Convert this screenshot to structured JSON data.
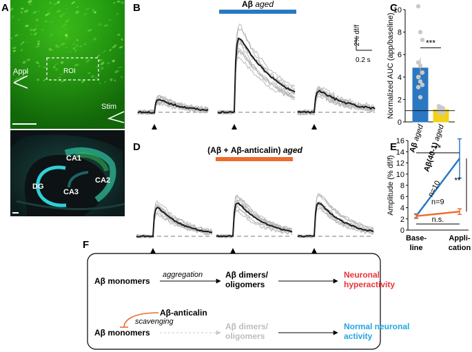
{
  "panels": {
    "A": {
      "letter": "A",
      "appl_label": "Appl",
      "roi_label": "ROI",
      "stim_label": "Stim",
      "regions": [
        "CA1",
        "CA2",
        "DG",
        "CA3"
      ]
    },
    "B": {
      "letter": "B",
      "bar_label_main": "Aβ ",
      "bar_label_sub": "aged",
      "bar_color": "#2b78c2",
      "scale_y": "2% df/f",
      "scale_x": "0.2 s"
    },
    "C": {
      "letter": "C"
    },
    "D": {
      "letter": "D",
      "bar_label_main": "(Aβ + Aβ-anticalin) ",
      "bar_label_sub": "aged",
      "bar_color": "#ee6a2e"
    },
    "E": {
      "letter": "E"
    },
    "F": {
      "letter": "F",
      "row1": {
        "start": "Aβ monomers",
        "arrow_label": "aggregation",
        "middle_line1": "Aβ dimers/",
        "middle_line2": "oligomers",
        "end_line1": "Neuronal",
        "end_line2": "hyperactivity",
        "end_color": "#e8333a"
      },
      "row2": {
        "inhibitor": "Aβ-anticalin",
        "inhibitor_label": "scavenging",
        "start": "Aβ monomers",
        "middle_line1": "Aβ dimers/",
        "middle_line2": "oligomers",
        "end_line1": "Normal neuronal",
        "end_line2": "activity",
        "end_color": "#22a7e0",
        "inhibit_color": "#ee6a2e"
      }
    }
  },
  "chart_data": [
    {
      "panel": "C",
      "type": "bar",
      "ylabel": "Normalized AUC (app/baseline)",
      "ylim": [
        0,
        10
      ],
      "yticks": [
        0,
        2,
        4,
        6,
        8,
        10
      ],
      "categories": [
        {
          "main": "Aβ ",
          "sub": "aged"
        },
        {
          "main": "Aβ(40-1) ",
          "sub": "aged"
        }
      ],
      "values": [
        4.8,
        1.1
      ],
      "errors": [
        0.9,
        0.1
      ],
      "colors": [
        "#2b78c2",
        "#f2d21a"
      ],
      "points": [
        [
          10.3,
          8.0,
          7.3,
          5.3,
          5.0,
          4.4,
          4.0,
          3.6,
          3.3,
          3.1,
          2.2
        ],
        [
          1.4,
          1.3,
          1.2,
          1.1,
          1.0,
          1.0,
          0.9,
          0.9,
          0.8
        ]
      ],
      "reference_line": 1,
      "significance": "***"
    },
    {
      "panel": "E",
      "type": "line",
      "ylabel": "Amplitude (% df/f)",
      "ylim": [
        0,
        16
      ],
      "yticks": [
        0,
        2,
        4,
        6,
        8,
        10,
        12,
        14,
        16
      ],
      "categories": [
        {
          "line1": "Base-",
          "line2": "line"
        },
        {
          "line1": "Appli-",
          "line2": "cation"
        }
      ],
      "series": [
        {
          "name": "n=10",
          "values": [
            2.5,
            12.8
          ],
          "errors": [
            0.4,
            3.5
          ],
          "color": "#2b78c2"
        },
        {
          "name": "n=9",
          "values": [
            2.5,
            3.3
          ],
          "errors": [
            0.3,
            0.5
          ],
          "color": "#ee6a2e"
        }
      ],
      "significance": [
        {
          "label": "**",
          "between": "baseline-application"
        },
        {
          "label": "**",
          "between": "series"
        },
        {
          "label": "n.s.",
          "between": "orange-baseline-application"
        }
      ]
    }
  ]
}
